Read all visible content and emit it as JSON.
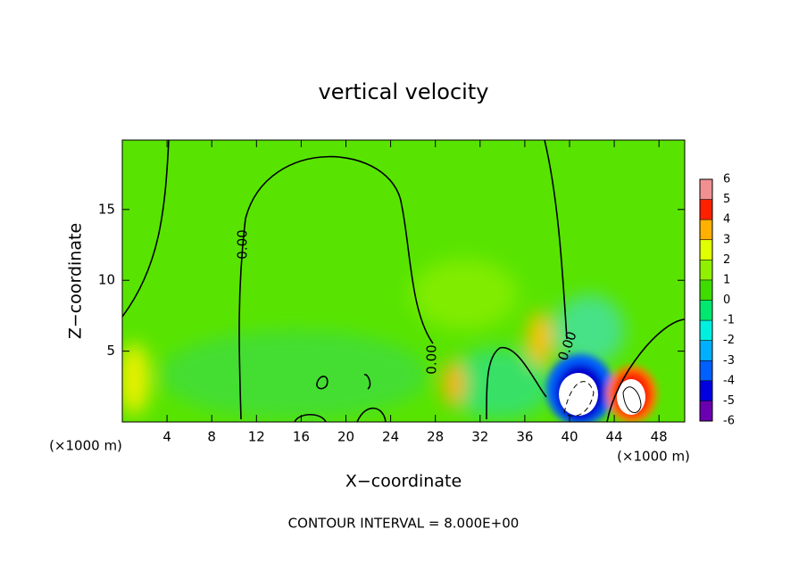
{
  "chart_data": {
    "type": "contour",
    "title": "vertical velocity",
    "x_label": "X−coordinate",
    "y_label": "Z−coordinate",
    "x_unit_left": "(×1000 m)",
    "x_unit_right": "(×1000 m)",
    "footer": "CONTOUR INTERVAL = 8.000E+00",
    "contour_labels": [
      "0.00",
      "0.00",
      "0.00"
    ],
    "xlim": [
      0,
      50.3
    ],
    "xticks": [
      4,
      8,
      12,
      16,
      20,
      24,
      28,
      32,
      36,
      40,
      44,
      48
    ],
    "ylim": [
      0,
      19.9
    ],
    "yticks": [
      5,
      10,
      15
    ],
    "colorbar": {
      "lim": [
        -6,
        6
      ],
      "ticks": [
        -6,
        -5,
        -4,
        -3,
        -2,
        -1,
        0,
        1,
        2,
        3,
        4,
        5,
        6
      ],
      "colors": [
        "#6a00b0",
        "#0000e0",
        "#0060ff",
        "#00b0ff",
        "#00f0e0",
        "#00e870",
        "#40dc00",
        "#90f000",
        "#e0ff00",
        "#ffb000",
        "#ff2000",
        "#f09090"
      ]
    }
  }
}
